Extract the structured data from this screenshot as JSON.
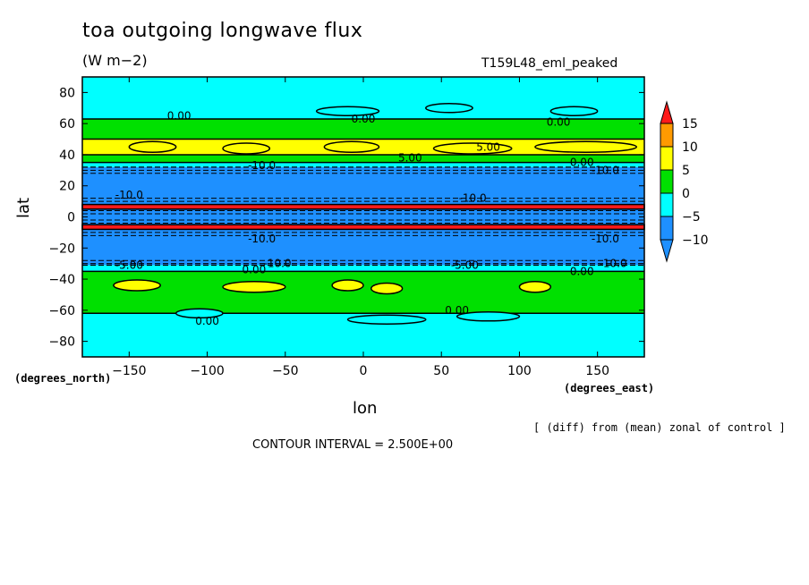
{
  "header": {
    "title": "toa outgoing longwave flux",
    "units": "(W m−2)",
    "run": "T159L48_eml_peaked"
  },
  "footer": {
    "diff_note": "[ (diff) from (mean) zonal of control ]",
    "contour_interval": "CONTOUR INTERVAL = 2.500E+00"
  },
  "chart_data": {
    "type": "heatmap",
    "title": "toa outgoing longwave flux",
    "xlabel": "lon",
    "ylabel": "lat",
    "x_units": "(degrees_east)",
    "y_units": "(degrees_north)",
    "xlim": [
      -180,
      180
    ],
    "ylim": [
      -90,
      90
    ],
    "x_ticks": [
      -150,
      -100,
      -50,
      0,
      50,
      100,
      150
    ],
    "y_ticks": [
      80,
      60,
      40,
      20,
      0,
      -20,
      -40,
      -60,
      -80
    ],
    "colorbar": {
      "levels": [
        15,
        10,
        5,
        0,
        -5,
        -10
      ],
      "colors": [
        "#ff1a1a",
        "#ff9a00",
        "#ffff00",
        "#00e000",
        "#00ffff",
        "#1e90ff"
      ],
      "extend": "both"
    },
    "zonal_bands": [
      {
        "lat_from": 90,
        "lat_to": 63,
        "value_class": "0..-5",
        "color": "#00ffff"
      },
      {
        "lat_from": 63,
        "lat_to": 50,
        "value_class": "0..5",
        "color": "#00e000"
      },
      {
        "lat_from": 50,
        "lat_to": 40,
        "value_class": "5..10 patches",
        "color": "#ffff00"
      },
      {
        "lat_from": 40,
        "lat_to": 35,
        "value_class": "0..5",
        "color": "#00e000"
      },
      {
        "lat_from": 35,
        "lat_to": 32,
        "value_class": "0..-5",
        "color": "#00ffff"
      },
      {
        "lat_from": 32,
        "lat_to": 8,
        "value_class": "-5..-10",
        "color": "#1e90ff"
      },
      {
        "lat_from": 8,
        "lat_to": 5,
        "value_class": ">15",
        "color": "#ff1a1a"
      },
      {
        "lat_from": 5,
        "lat_to": -5,
        "value_class": "<-10",
        "color": "#1e90ff"
      },
      {
        "lat_from": -5,
        "lat_to": -8,
        "value_class": ">15",
        "color": "#ff1a1a"
      },
      {
        "lat_from": -8,
        "lat_to": -31,
        "value_class": "-5..-10",
        "color": "#1e90ff"
      },
      {
        "lat_from": -31,
        "lat_to": -35,
        "value_class": "0..-5",
        "color": "#00ffff"
      },
      {
        "lat_from": -35,
        "lat_to": -62,
        "value_class": "0..5",
        "color": "#00e000"
      },
      {
        "lat_from": -62,
        "lat_to": -90,
        "value_class": "0..-5",
        "color": "#00ffff"
      }
    ],
    "contour_labels": [
      {
        "text": "0.00",
        "lon": -118,
        "lat": 65
      },
      {
        "text": "0.00",
        "lon": 0,
        "lat": 63
      },
      {
        "text": "0.00",
        "lon": 125,
        "lat": 61
      },
      {
        "text": "5.00",
        "lon": 80,
        "lat": 45
      },
      {
        "text": "5.00",
        "lon": 30,
        "lat": 38
      },
      {
        "text": "0.00",
        "lon": 140,
        "lat": 35
      },
      {
        "text": "-10.0",
        "lon": -65,
        "lat": 33
      },
      {
        "text": "-10.0",
        "lon": 155,
        "lat": 30
      },
      {
        "text": "-10.0",
        "lon": -150,
        "lat": 14
      },
      {
        "text": "-10.0",
        "lon": 70,
        "lat": 12
      },
      {
        "text": "-10.0",
        "lon": -65,
        "lat": -14
      },
      {
        "text": "-10.0",
        "lon": 155,
        "lat": -14
      },
      {
        "text": "-5.00",
        "lon": -150,
        "lat": -31
      },
      {
        "text": "-10.0",
        "lon": -55,
        "lat": -30
      },
      {
        "text": "-5.00",
        "lon": 65,
        "lat": -31
      },
      {
        "text": "-10.0",
        "lon": 160,
        "lat": -30
      },
      {
        "text": "0.00",
        "lon": -70,
        "lat": -34
      },
      {
        "text": "0.00",
        "lon": 140,
        "lat": -35
      },
      {
        "text": "0.00",
        "lon": 60,
        "lat": -60
      },
      {
        "text": "0.00",
        "lon": -100,
        "lat": -67
      }
    ]
  }
}
